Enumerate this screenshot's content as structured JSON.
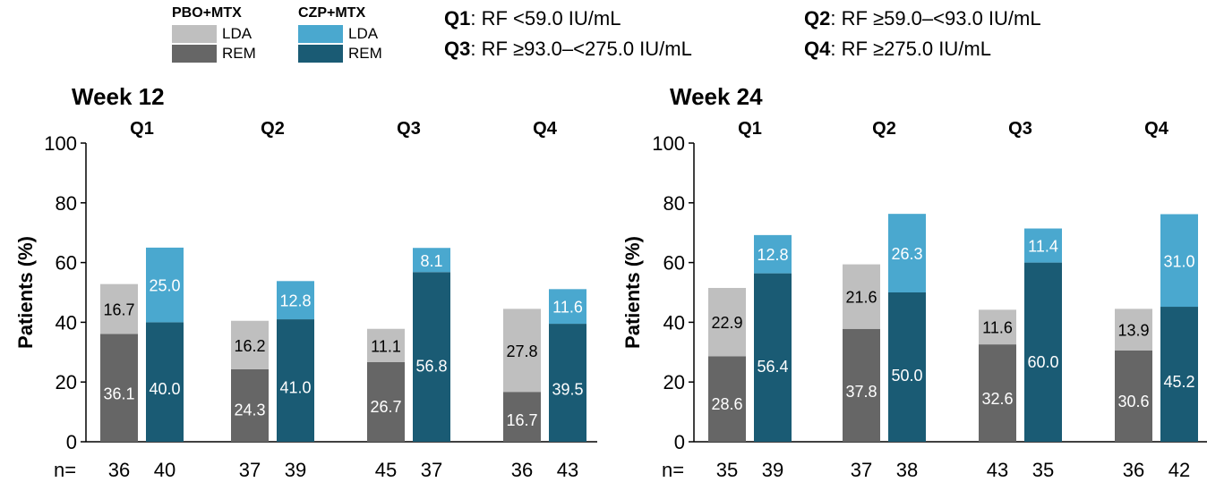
{
  "legend": {
    "groups": [
      {
        "title": "PBO+MTX",
        "items": [
          {
            "label": "LDA",
            "color": "#bfbfbf"
          },
          {
            "label": "REM",
            "color": "#666666"
          }
        ]
      },
      {
        "title": "CZP+MTX",
        "items": [
          {
            "label": "LDA",
            "color": "#4aa8cf"
          },
          {
            "label": "REM",
            "color": "#1a5b74"
          }
        ]
      }
    ],
    "quartiles": [
      {
        "key": "Q1",
        "text": ": RF <59.0 IU/mL"
      },
      {
        "key": "Q2",
        "text": ": RF ≥59.0–<93.0 IU/mL"
      },
      {
        "key": "Q3",
        "text": ": RF ≥93.0–<275.0 IU/mL"
      },
      {
        "key": "Q4",
        "text": ": RF ≥275.0 IU/mL"
      }
    ]
  },
  "colors": {
    "pbo_lda": "#bfbfbf",
    "pbo_rem": "#666666",
    "czp_lda": "#4aa8cf",
    "czp_rem": "#1a5b74"
  },
  "chart_data": [
    {
      "type": "bar",
      "title": "Week 12",
      "ylabel": "Patients (%)",
      "ylim": [
        0,
        100
      ],
      "yticks": [
        0,
        20,
        40,
        60,
        80,
        100
      ],
      "n_label": "n=",
      "categories": [
        "Q1",
        "Q2",
        "Q3",
        "Q4"
      ],
      "series": [
        {
          "name": "PBO+MTX",
          "rem": [
            36.1,
            24.3,
            26.7,
            16.7
          ],
          "lda": [
            16.7,
            16.2,
            11.1,
            27.8
          ],
          "n": [
            36,
            37,
            45,
            36
          ]
        },
        {
          "name": "CZP+MTX",
          "rem": [
            40.0,
            41.0,
            56.8,
            39.5
          ],
          "lda": [
            25.0,
            12.8,
            8.1,
            11.6
          ],
          "n": [
            40,
            39,
            37,
            43
          ]
        }
      ]
    },
    {
      "type": "bar",
      "title": "Week 24",
      "ylabel": "Patients (%)",
      "ylim": [
        0,
        100
      ],
      "yticks": [
        0,
        20,
        40,
        60,
        80,
        100
      ],
      "n_label": "n=",
      "categories": [
        "Q1",
        "Q2",
        "Q3",
        "Q4"
      ],
      "series": [
        {
          "name": "PBO+MTX",
          "rem": [
            28.6,
            37.8,
            32.6,
            30.6
          ],
          "lda": [
            22.9,
            21.6,
            11.6,
            13.9
          ],
          "n": [
            35,
            37,
            43,
            36
          ]
        },
        {
          "name": "CZP+MTX",
          "rem": [
            56.4,
            50.0,
            60.0,
            45.2
          ],
          "lda": [
            12.8,
            26.3,
            11.4,
            31.0
          ],
          "n": [
            39,
            38,
            35,
            42
          ]
        }
      ]
    }
  ]
}
